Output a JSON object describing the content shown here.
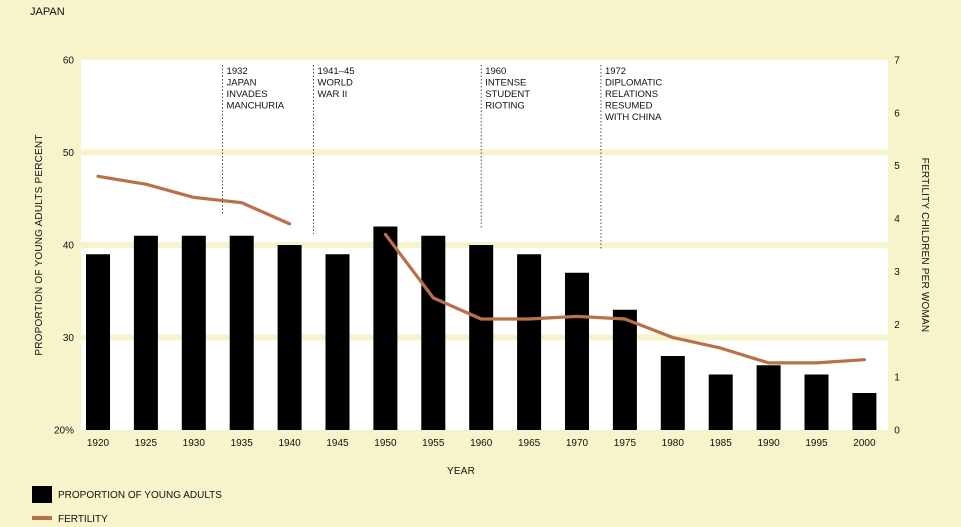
{
  "chart_data": {
    "type": "bar",
    "title": "JAPAN",
    "xlabel": "YEAR",
    "ylabel": "PROPORTION OF YOUNG ADULTS PERCENT",
    "y2label": "FERTILITY CHILDREN PER WOMAN",
    "categories": [
      "1920",
      "1925",
      "1930",
      "1935",
      "1940",
      "1945",
      "1950",
      "1955",
      "1960",
      "1965",
      "1970",
      "1975",
      "1980",
      "1985",
      "1990",
      "1995",
      "2000"
    ],
    "ylim": [
      20,
      60
    ],
    "yticks": [
      "20%",
      "30",
      "40",
      "50",
      "60"
    ],
    "y2lim": [
      0,
      7
    ],
    "y2ticks": [
      "0",
      "1",
      "2",
      "3",
      "4",
      "5",
      "6",
      "7"
    ],
    "grid": true,
    "legend_position": "bottom-left",
    "series": [
      {
        "name": "PROPORTION OF YOUNG ADULTS",
        "type": "bar",
        "axis": "left",
        "color": "#000000",
        "values": [
          39,
          41,
          41,
          41,
          40,
          39,
          42,
          41,
          40,
          39,
          37,
          33,
          28,
          26,
          27,
          26,
          24
        ]
      },
      {
        "name": "FERTILITY",
        "type": "line",
        "axis": "right",
        "color": "#b8714a",
        "segments": [
          {
            "x": [
              1920,
              1925,
              1930,
              1935,
              1940
            ],
            "values": [
              4.8,
              4.65,
              4.4,
              4.3,
              3.9
            ]
          },
          {
            "x": [
              1950,
              1955,
              1960,
              1965,
              1970,
              1975,
              1980,
              1985,
              1990,
              1995,
              2000
            ],
            "values": [
              3.7,
              2.5,
              2.1,
              2.1,
              2.15,
              2.1,
              1.75,
              1.55,
              1.27,
              1.27,
              1.33
            ]
          }
        ]
      }
    ],
    "annotations": [
      {
        "x": 1933,
        "lines": [
          "1932",
          "JAPAN",
          "INVADES",
          "MANCHURIA"
        ]
      },
      {
        "x": 1942.5,
        "lines": [
          "1941–45",
          "WORLD",
          "WAR II"
        ]
      },
      {
        "x": 1960,
        "lines": [
          "1960",
          "INTENSE",
          "STUDENT",
          "RIOTING"
        ]
      },
      {
        "x": 1972.5,
        "lines": [
          "1972",
          "DIPLOMATIC",
          "RELATIONS",
          "RESUMED",
          "WITH CHINA"
        ]
      }
    ]
  }
}
